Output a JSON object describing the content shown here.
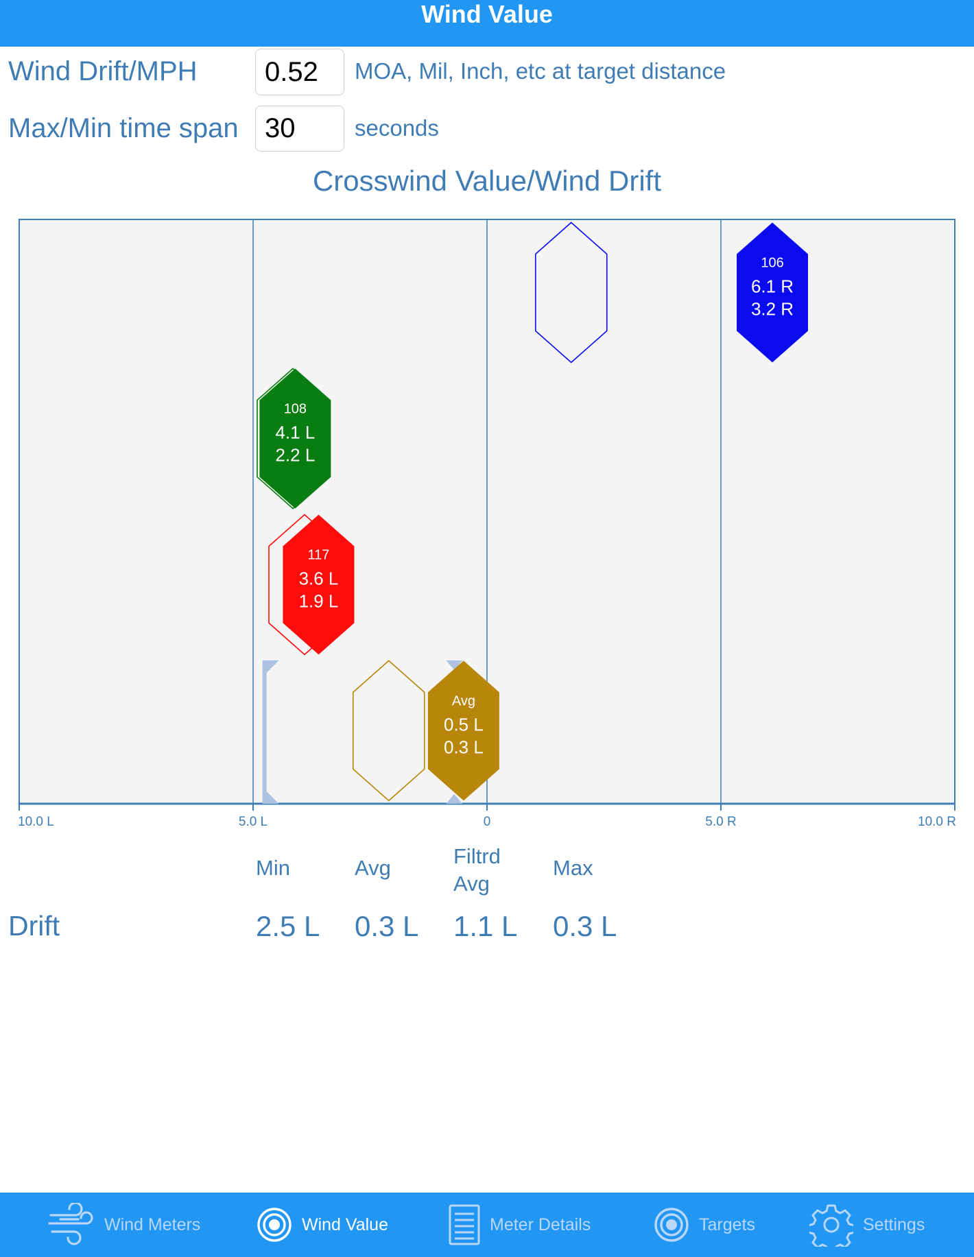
{
  "header": {
    "title": "Wind Value"
  },
  "settings": {
    "wind_drift_label": "Wind Drift/MPH",
    "wind_drift_value": "0.52",
    "wind_drift_hint": "MOA, Mil, Inch, etc at target distance",
    "time_span_label": "Max/Min time span",
    "time_span_value": "30",
    "time_span_hint": "seconds"
  },
  "chart_data": {
    "type": "scatter",
    "title": "Crosswind Value/Wind Drift",
    "xlim": [
      -10,
      10
    ],
    "x_ticks": [
      {
        "value": -10,
        "label": "10.0 L"
      },
      {
        "value": -5,
        "label": "5.0 L"
      },
      {
        "value": 0,
        "label": "0"
      },
      {
        "value": 5,
        "label": "5.0 R"
      },
      {
        "value": 10,
        "label": "10.0 R"
      }
    ],
    "gridlines_at": [
      -5,
      0,
      5
    ],
    "rows": [
      {
        "id": "106",
        "color": "#0b0bf0",
        "value": 6.1,
        "value_label": "6.1 R",
        "drift_label": "3.2 R",
        "outline_value": 1.8
      },
      {
        "id": "108",
        "color": "#0a7d12",
        "value": -4.1,
        "value_label": "4.1 L",
        "drift_label": "2.2 L",
        "outline_value": -4.15
      },
      {
        "id": "117",
        "color": "#ff0d0d",
        "value": -3.6,
        "value_label": "3.6 L",
        "drift_label": "1.9 L",
        "outline_value": -3.9
      },
      {
        "id": "Avg",
        "color": "#b8860b",
        "value": -0.5,
        "value_label": "0.5 L",
        "drift_label": "0.3 L",
        "outline_value": -2.1
      }
    ],
    "range_bracket": {
      "min": -4.8,
      "max": -0.7,
      "color": "#aec3e2"
    }
  },
  "drift": {
    "row_label": "Drift",
    "columns": [
      {
        "head": "Min",
        "value": "2.5 L"
      },
      {
        "head": "Avg",
        "value": "0.3 L"
      },
      {
        "head": "Filtrd Avg",
        "value": "1.1 L"
      },
      {
        "head": "Max",
        "value": "0.3 L"
      }
    ]
  },
  "tabs": [
    {
      "label": "Wind Meters",
      "icon": "wind-icon"
    },
    {
      "label": "Wind Value",
      "icon": "target-icon",
      "active": true
    },
    {
      "label": "Meter Details",
      "icon": "list-icon"
    },
    {
      "label": "Targets",
      "icon": "target-icon"
    },
    {
      "label": "Settings",
      "icon": "gear-icon"
    }
  ]
}
